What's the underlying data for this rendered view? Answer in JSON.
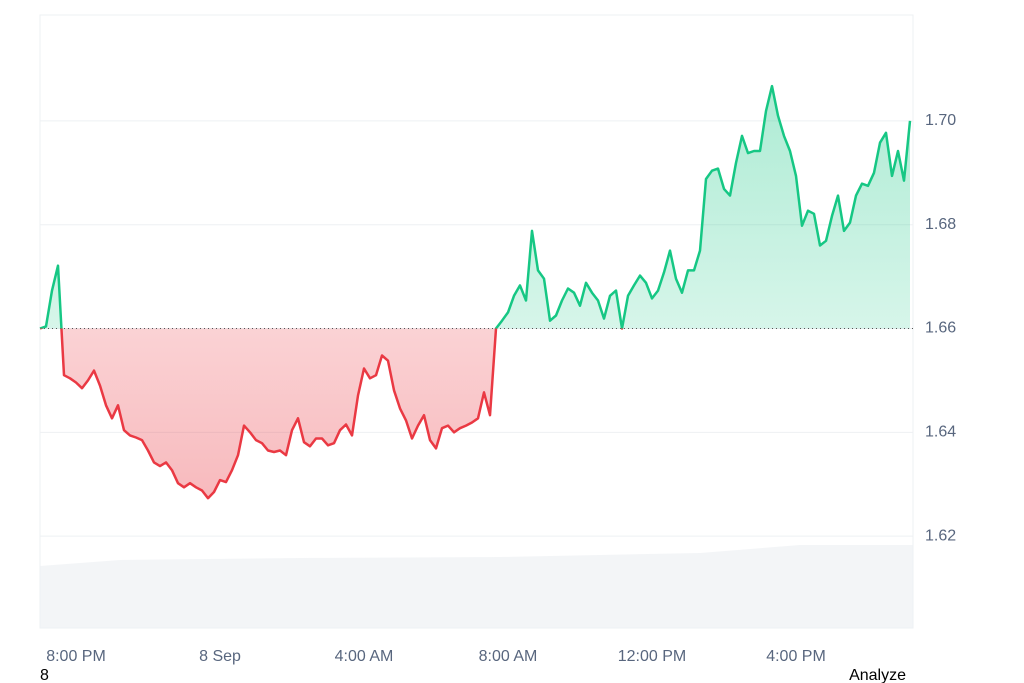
{
  "chart_data": {
    "type": "baseline",
    "baseline": 1.66,
    "up_color": "#16c784",
    "down_color": "#ea3943",
    "grid": true,
    "ylim": [
      1.6023,
      1.7204
    ],
    "yticks": [
      1.62,
      1.64,
      1.66,
      1.68,
      {
        "value": 1.7,
        "label": "1.70"
      }
    ],
    "xlim": [
      0,
      145.5
    ],
    "xticks": [
      {
        "value": 6,
        "label": "8:00 PM"
      },
      {
        "value": 30,
        "label": "8 Sep"
      },
      {
        "value": 54,
        "label": "4:00 AM"
      },
      {
        "value": 78,
        "label": "8:00 AM"
      },
      {
        "value": 102,
        "label": "12:00 PM"
      },
      {
        "value": 126,
        "label": "4:00 PM"
      }
    ],
    "values": [
      1.66,
      1.6604,
      1.6673,
      1.6721,
      1.651,
      1.6504,
      1.6496,
      1.6485,
      1.65,
      1.6519,
      1.649,
      1.6452,
      1.6427,
      1.6452,
      1.6404,
      1.6394,
      1.639,
      1.6385,
      1.6365,
      1.6342,
      1.6335,
      1.6342,
      1.6327,
      1.6302,
      1.6294,
      1.6302,
      1.6294,
      1.6288,
      1.6273,
      1.6285,
      1.6308,
      1.6304,
      1.6327,
      1.6356,
      1.6413,
      1.64,
      1.6385,
      1.6379,
      1.6365,
      1.6362,
      1.6365,
      1.6356,
      1.6404,
      1.6427,
      1.6381,
      1.6373,
      1.6388,
      1.6388,
      1.6375,
      1.6379,
      1.6404,
      1.6415,
      1.6394,
      1.6471,
      1.6523,
      1.6504,
      1.651,
      1.6548,
      1.6538,
      1.6481,
      1.6446,
      1.6423,
      1.6388,
      1.6413,
      1.6433,
      1.6385,
      1.6369,
      1.6408,
      1.6413,
      1.64,
      1.6408,
      1.6413,
      1.6419,
      1.6427,
      1.6477,
      1.6433,
      1.66,
      1.6615,
      1.6631,
      1.6663,
      1.6683,
      1.6654,
      1.6788,
      1.6712,
      1.6696,
      1.6615,
      1.6625,
      1.6654,
      1.6677,
      1.6669,
      1.6644,
      1.6688,
      1.6669,
      1.6654,
      1.6619,
      1.6663,
      1.6673,
      1.66,
      1.6663,
      1.6683,
      1.6702,
      1.6688,
      1.6658,
      1.6673,
      1.6708,
      1.675,
      1.6696,
      1.6669,
      1.6712,
      1.6712,
      1.675,
      1.6888,
      1.6904,
      1.6908,
      1.6869,
      1.6856,
      1.6919,
      1.6971,
      1.6938,
      1.6942,
      1.6942,
      1.7019,
      1.7067,
      1.701,
      1.6971,
      1.6942,
      1.6894,
      1.6798,
      1.6827,
      1.6821,
      1.676,
      1.6769,
      1.6817,
      1.6856,
      1.6788,
      1.6804,
      1.6856,
      1.6879,
      1.6875,
      1.69,
      1.6958,
      1.6977,
      1.6894,
      1.6942,
      1.6885,
      1.7
    ]
  },
  "footer": {
    "left": "8",
    "right": "Analyze"
  }
}
